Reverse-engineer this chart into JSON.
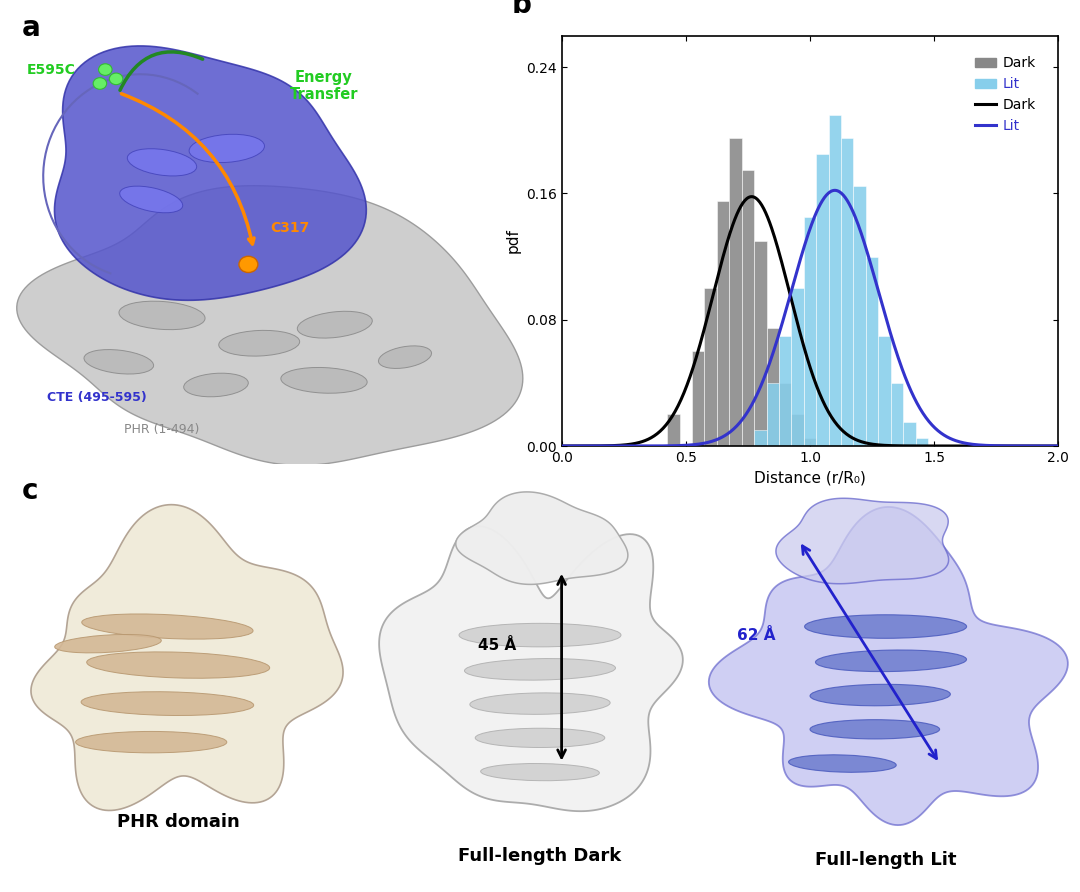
{
  "panel_b": {
    "dark_hist_centers": [
      0.45,
      0.55,
      0.6,
      0.65,
      0.7,
      0.75,
      0.8,
      0.85,
      0.9,
      0.95,
      1.0
    ],
    "dark_hist_vals": [
      0.02,
      0.06,
      0.1,
      0.155,
      0.195,
      0.175,
      0.13,
      0.075,
      0.04,
      0.02,
      0.005
    ],
    "lit_hist_centers": [
      0.8,
      0.85,
      0.9,
      0.95,
      1.0,
      1.05,
      1.1,
      1.15,
      1.2,
      1.25,
      1.3,
      1.35,
      1.4,
      1.45
    ],
    "lit_hist_vals": [
      0.01,
      0.04,
      0.07,
      0.1,
      0.145,
      0.185,
      0.21,
      0.195,
      0.165,
      0.12,
      0.07,
      0.04,
      0.015,
      0.005
    ],
    "dark_curve_mu": 0.765,
    "dark_curve_sigma": 0.155,
    "dark_curve_peak": 0.158,
    "lit_curve_mu": 1.1,
    "lit_curve_sigma": 0.175,
    "lit_curve_peak": 0.162,
    "xlim": [
      0.0,
      2.0
    ],
    "ylim": [
      0.0,
      0.26
    ],
    "yticks": [
      0.0,
      0.08,
      0.16,
      0.24
    ],
    "xticks": [
      0.0,
      0.5,
      1.0,
      1.5,
      2.0
    ],
    "xlabel": "Distance (r/R₀)",
    "ylabel": "pdf",
    "dark_hist_color": "#888888",
    "lit_hist_color": "#87CEEB",
    "dark_curve_color": "#000000",
    "lit_curve_color": "#3333CC",
    "bin_width": 0.05
  },
  "panel_labels_fontsize": 20,
  "panel_c": {
    "phr_domain_label": "PHR domain",
    "full_dark_label": "Full-length Dark",
    "full_lit_label": "Full-length Lit",
    "arrow_dark_label": "45 Å",
    "arrow_lit_label": "62 Å"
  }
}
